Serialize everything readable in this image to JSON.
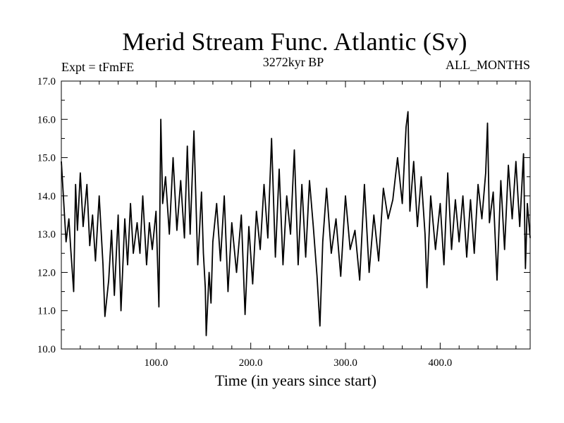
{
  "chart_data": {
    "type": "line",
    "title": "Merid Stream Func. Atlantic (Sv)",
    "subtitle_left": "Expt = tFmFE",
    "subtitle_center": "3272kyr BP",
    "subtitle_right": "ALL_MONTHS",
    "xlabel": "Time (in years since start)",
    "ylabel": "",
    "xlim": [
      0,
      495
    ],
    "ylim": [
      10.0,
      17.0
    ],
    "x_ticks": [
      100,
      200,
      300,
      400
    ],
    "x_tick_labels": [
      "100.0",
      "200.0",
      "300.0",
      "400.0"
    ],
    "y_ticks": [
      10,
      11,
      12,
      13,
      14,
      15,
      16,
      17
    ],
    "y_tick_labels": [
      "10.0",
      "11.0",
      "12.0",
      "13.0",
      "14.0",
      "15.0",
      "16.0",
      "17.0"
    ],
    "series": [
      {
        "name": "Merid Stream Func. Atlantic",
        "x": [
          0,
          5,
          8,
          10,
          13,
          15,
          17,
          20,
          23,
          27,
          30,
          33,
          36,
          40,
          44,
          46,
          50,
          53,
          56,
          60,
          63,
          67,
          70,
          73,
          76,
          80,
          83,
          86,
          90,
          93,
          96,
          100,
          103,
          105,
          107,
          110,
          114,
          118,
          122,
          126,
          130,
          133,
          136,
          140,
          144,
          148,
          150,
          152,
          153,
          156,
          158,
          160,
          164,
          168,
          172,
          176,
          180,
          185,
          190,
          194,
          198,
          202,
          206,
          210,
          214,
          218,
          222,
          226,
          230,
          234,
          238,
          242,
          246,
          250,
          254,
          258,
          262,
          266,
          270,
          273,
          276,
          280,
          285,
          290,
          295,
          300,
          305,
          310,
          315,
          320,
          325,
          330,
          335,
          340,
          345,
          350,
          355,
          360,
          364,
          366,
          368,
          372,
          376,
          380,
          384,
          386,
          390,
          395,
          400,
          404,
          408,
          412,
          416,
          420,
          424,
          428,
          432,
          436,
          440,
          444,
          448,
          450,
          452,
          456,
          460,
          464,
          468,
          472,
          476,
          480,
          484,
          488,
          490,
          492,
          495
        ],
        "values": [
          14.9,
          12.8,
          13.4,
          12.6,
          11.5,
          14.3,
          13.1,
          14.6,
          13.2,
          14.3,
          12.7,
          13.5,
          12.3,
          14.0,
          12.2,
          10.85,
          11.8,
          13.1,
          11.4,
          13.5,
          11.0,
          13.4,
          12.2,
          13.8,
          12.5,
          13.3,
          12.5,
          14.0,
          12.2,
          13.3,
          12.6,
          13.6,
          11.1,
          16.0,
          13.8,
          14.5,
          13.0,
          15.0,
          13.1,
          14.4,
          12.9,
          15.3,
          13.0,
          15.7,
          12.2,
          14.1,
          12.5,
          11.6,
          10.35,
          12.0,
          11.2,
          12.8,
          13.8,
          12.3,
          14.0,
          11.5,
          13.3,
          12.0,
          13.5,
          10.9,
          13.2,
          11.7,
          13.6,
          12.6,
          14.3,
          12.9,
          15.5,
          12.4,
          14.7,
          12.2,
          14.0,
          13.0,
          15.2,
          12.2,
          14.3,
          12.4,
          14.4,
          13.2,
          11.9,
          10.6,
          12.8,
          14.2,
          12.5,
          13.4,
          11.9,
          14.0,
          12.6,
          13.1,
          11.8,
          14.3,
          12.0,
          13.5,
          12.3,
          14.2,
          13.4,
          13.9,
          15.0,
          13.8,
          15.8,
          16.2,
          13.6,
          14.9,
          13.2,
          14.5,
          13.0,
          11.6,
          14.0,
          12.6,
          13.8,
          12.2,
          14.6,
          12.6,
          13.9,
          12.8,
          14.0,
          12.4,
          13.9,
          12.5,
          14.3,
          13.4,
          14.6,
          15.9,
          13.3,
          14.1,
          11.8,
          14.4,
          12.6,
          14.8,
          13.4,
          14.9,
          13.2,
          15.1,
          12.1,
          13.8,
          12.9
        ]
      }
    ]
  }
}
